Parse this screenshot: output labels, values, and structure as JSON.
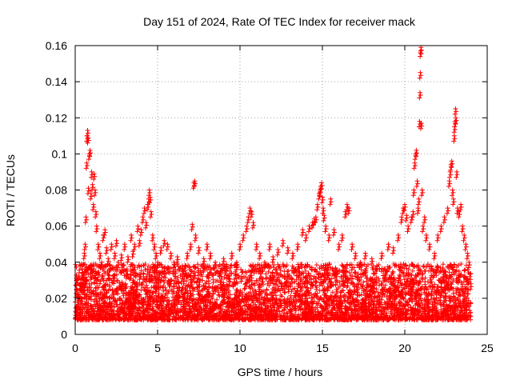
{
  "chart_data": {
    "type": "scatter",
    "title": "Day 151 of 2024, Rate Of TEC Index for receiver mack",
    "xlabel": "GPS time / hours",
    "ylabel": "ROTI / TECUs",
    "xlim": [
      0,
      25
    ],
    "ylim": [
      0,
      0.16
    ],
    "xticks": [
      0,
      5,
      10,
      15,
      20,
      25
    ],
    "xtick_labels": [
      "0",
      "5",
      "10",
      "15",
      "20",
      "25"
    ],
    "yticks": [
      0,
      0.02,
      0.04,
      0.06,
      0.08,
      0.1,
      0.12,
      0.14,
      0.16
    ],
    "ytick_labels": [
      "0",
      "0.02",
      "0.04",
      "0.06",
      "0.08",
      "0.1",
      "0.12",
      "0.14",
      "0.16"
    ],
    "grid": true,
    "marker": "+",
    "marker_color": "#ff0000",
    "data_coverage_hours": [
      0,
      24
    ],
    "baseline_envelope": {
      "typical_min": 0.008,
      "typical_max": 0.035
    },
    "series": [
      {
        "name": "ROTI",
        "points": [
          [
            0.05,
            0.012
          ],
          [
            0.1,
            0.03
          ],
          [
            0.15,
            0.018
          ],
          [
            0.2,
            0.022
          ],
          [
            0.3,
            0.015
          ],
          [
            0.35,
            0.028
          ],
          [
            0.4,
            0.02
          ],
          [
            0.5,
            0.033
          ],
          [
            0.55,
            0.045
          ],
          [
            0.6,
            0.05
          ],
          [
            0.65,
            0.065
          ],
          [
            0.7,
            0.095
          ],
          [
            0.72,
            0.11
          ],
          [
            0.75,
            0.113
          ],
          [
            0.78,
            0.109
          ],
          [
            0.8,
            0.081
          ],
          [
            0.85,
            0.1
          ],
          [
            0.9,
            0.102
          ],
          [
            0.95,
            0.078
          ],
          [
            1.0,
            0.09
          ],
          [
            1.05,
            0.083
          ],
          [
            1.1,
            0.072
          ],
          [
            1.15,
            0.089
          ],
          [
            1.2,
            0.08
          ],
          [
            1.25,
            0.068
          ],
          [
            1.3,
            0.06
          ],
          [
            1.4,
            0.05
          ],
          [
            1.5,
            0.045
          ],
          [
            1.6,
            0.04
          ],
          [
            1.7,
            0.055
          ],
          [
            1.8,
            0.058
          ],
          [
            1.9,
            0.048
          ],
          [
            2.0,
            0.042
          ],
          [
            2.1,
            0.038
          ],
          [
            2.2,
            0.05
          ],
          [
            2.4,
            0.045
          ],
          [
            2.5,
            0.052
          ],
          [
            2.6,
            0.04
          ],
          [
            2.8,
            0.044
          ],
          [
            3.0,
            0.05
          ],
          [
            3.2,
            0.043
          ],
          [
            3.4,
            0.055
          ],
          [
            3.5,
            0.046
          ],
          [
            3.6,
            0.05
          ],
          [
            3.8,
            0.06
          ],
          [
            3.9,
            0.052
          ],
          [
            4.0,
            0.058
          ],
          [
            4.1,
            0.065
          ],
          [
            4.2,
            0.07
          ],
          [
            4.3,
            0.062
          ],
          [
            4.4,
            0.072
          ],
          [
            4.45,
            0.075
          ],
          [
            4.5,
            0.08
          ],
          [
            4.55,
            0.076
          ],
          [
            4.6,
            0.068
          ],
          [
            4.7,
            0.055
          ],
          [
            4.8,
            0.05
          ],
          [
            4.9,
            0.045
          ],
          [
            5.0,
            0.04
          ],
          [
            5.2,
            0.048
          ],
          [
            5.4,
            0.052
          ],
          [
            5.6,
            0.05
          ],
          [
            5.8,
            0.045
          ],
          [
            6.0,
            0.04
          ],
          [
            6.2,
            0.043
          ],
          [
            6.5,
            0.038
          ],
          [
            6.8,
            0.045
          ],
          [
            7.0,
            0.05
          ],
          [
            7.1,
            0.061
          ],
          [
            7.2,
            0.084
          ],
          [
            7.25,
            0.085
          ],
          [
            7.3,
            0.055
          ],
          [
            7.5,
            0.048
          ],
          [
            7.8,
            0.042
          ],
          [
            8.0,
            0.05
          ],
          [
            8.2,
            0.045
          ],
          [
            8.5,
            0.04
          ],
          [
            8.8,
            0.035
          ],
          [
            9.0,
            0.042
          ],
          [
            9.2,
            0.038
          ],
          [
            9.5,
            0.045
          ],
          [
            9.8,
            0.04
          ],
          [
            10.0,
            0.05
          ],
          [
            10.2,
            0.055
          ],
          [
            10.4,
            0.06
          ],
          [
            10.5,
            0.065
          ],
          [
            10.6,
            0.07
          ],
          [
            10.7,
            0.068
          ],
          [
            10.8,
            0.062
          ],
          [
            11.0,
            0.05
          ],
          [
            11.2,
            0.045
          ],
          [
            11.5,
            0.04
          ],
          [
            11.8,
            0.05
          ],
          [
            12.0,
            0.043
          ],
          [
            12.3,
            0.047
          ],
          [
            12.6,
            0.052
          ],
          [
            12.9,
            0.048
          ],
          [
            13.2,
            0.045
          ],
          [
            13.5,
            0.05
          ],
          [
            13.8,
            0.058
          ],
          [
            14.0,
            0.055
          ],
          [
            14.2,
            0.06
          ],
          [
            14.4,
            0.062
          ],
          [
            14.5,
            0.064
          ],
          [
            14.6,
            0.065
          ],
          [
            14.7,
            0.072
          ],
          [
            14.8,
            0.078
          ],
          [
            14.85,
            0.08
          ],
          [
            14.9,
            0.082
          ],
          [
            14.95,
            0.084
          ],
          [
            15.0,
            0.076
          ],
          [
            15.05,
            0.07
          ],
          [
            15.1,
            0.066
          ],
          [
            15.2,
            0.06
          ],
          [
            15.4,
            0.055
          ],
          [
            15.5,
            0.075
          ],
          [
            15.7,
            0.058
          ],
          [
            16.0,
            0.05
          ],
          [
            16.2,
            0.055
          ],
          [
            16.4,
            0.068
          ],
          [
            16.5,
            0.072
          ],
          [
            16.6,
            0.07
          ],
          [
            16.8,
            0.05
          ],
          [
            17.0,
            0.045
          ],
          [
            17.3,
            0.04
          ],
          [
            17.6,
            0.045
          ],
          [
            18.0,
            0.042
          ],
          [
            18.3,
            0.038
          ],
          [
            18.6,
            0.045
          ],
          [
            19.0,
            0.05
          ],
          [
            19.3,
            0.048
          ],
          [
            19.6,
            0.055
          ],
          [
            19.8,
            0.065
          ],
          [
            19.9,
            0.07
          ],
          [
            20.0,
            0.072
          ],
          [
            20.1,
            0.066
          ],
          [
            20.2,
            0.06
          ],
          [
            20.4,
            0.065
          ],
          [
            20.5,
            0.068
          ],
          [
            20.55,
            0.08
          ],
          [
            20.6,
            0.095
          ],
          [
            20.65,
            0.1
          ],
          [
            20.7,
            0.102
          ],
          [
            20.75,
            0.085
          ],
          [
            20.8,
            0.07
          ],
          [
            20.85,
            0.075
          ],
          [
            20.9,
            0.118
          ],
          [
            20.92,
            0.134
          ],
          [
            20.94,
            0.145
          ],
          [
            20.96,
            0.157
          ],
          [
            20.98,
            0.159
          ],
          [
            21.0,
            0.117
          ],
          [
            21.05,
            0.08
          ],
          [
            21.1,
            0.06
          ],
          [
            21.2,
            0.065
          ],
          [
            21.3,
            0.055
          ],
          [
            21.5,
            0.05
          ],
          [
            21.8,
            0.045
          ],
          [
            22.0,
            0.055
          ],
          [
            22.2,
            0.06
          ],
          [
            22.4,
            0.065
          ],
          [
            22.6,
            0.07
          ],
          [
            22.7,
            0.085
          ],
          [
            22.75,
            0.09
          ],
          [
            22.8,
            0.094
          ],
          [
            22.85,
            0.096
          ],
          [
            22.9,
            0.08
          ],
          [
            22.95,
            0.075
          ],
          [
            23.0,
            0.11
          ],
          [
            23.02,
            0.115
          ],
          [
            23.05,
            0.118
          ],
          [
            23.08,
            0.125
          ],
          [
            23.1,
            0.12
          ],
          [
            23.15,
            0.09
          ],
          [
            23.2,
            0.07
          ],
          [
            23.3,
            0.068
          ],
          [
            23.4,
            0.072
          ],
          [
            23.5,
            0.06
          ],
          [
            23.6,
            0.055
          ],
          [
            23.7,
            0.05
          ],
          [
            23.8,
            0.045
          ],
          [
            23.9,
            0.04
          ],
          [
            23.95,
            0.032
          ],
          [
            24.0,
            0.028
          ]
        ]
      }
    ]
  }
}
